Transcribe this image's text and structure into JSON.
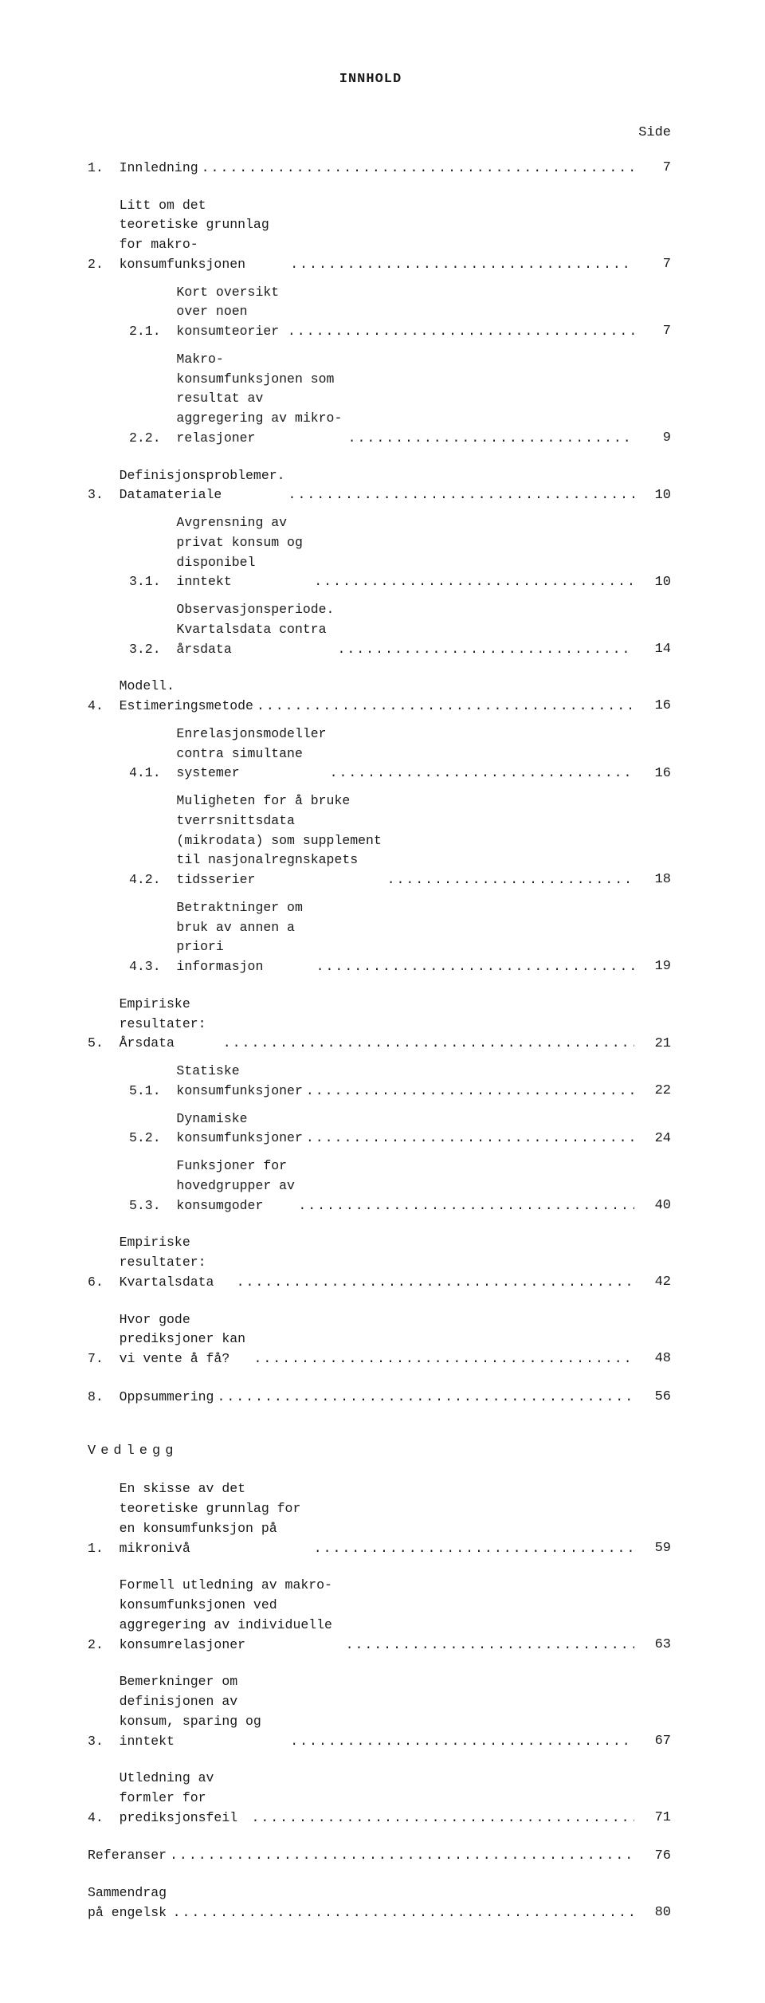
{
  "title": "INNHOLD",
  "side_label": "Side",
  "vedlegg_label": "Vedlegg",
  "dots": "..................................................................................................",
  "entries": [
    {
      "level": "top",
      "num": "1.",
      "text": "Innledning",
      "page": "7",
      "gap": "section-gap"
    },
    {
      "level": "top",
      "num": "2.",
      "text": "Litt om det teoretiske grunnlag for makro-konsumfunksjonen",
      "page": "7",
      "gap": "section-gap"
    },
    {
      "level": "sub",
      "num": "2.1.",
      "text": "Kort oversikt over noen konsumteorier",
      "page": "7"
    },
    {
      "level": "sub",
      "num": "2.2.",
      "text": "Makro-konsumfunksjonen som resultat av aggregering av mikro-relasjoner",
      "page": "9",
      "multiline": true
    },
    {
      "level": "top",
      "num": "3.",
      "text": "Definisjonsproblemer.  Datamateriale",
      "page": "10",
      "gap": "section-gap"
    },
    {
      "level": "sub",
      "num": "3.1.",
      "text": "Avgrensning av privat konsum og disponibel inntekt",
      "page": "10"
    },
    {
      "level": "sub",
      "num": "3.2.",
      "text": "Observasjonsperiode.  Kvartalsdata contra årsdata",
      "page": "14"
    },
    {
      "level": "top",
      "num": "4.",
      "text": "Modell.  Estimeringsmetode",
      "page": "16",
      "gap": "section-gap"
    },
    {
      "level": "sub",
      "num": "4.1.",
      "text": "Enrelasjonsmodeller contra simultane systemer",
      "page": "16"
    },
    {
      "level": "sub",
      "num": "4.2.",
      "text": "Muligheten for å bruke tverrsnittsdata (mikrodata) som supplement til nasjonalregnskapets tidsserier",
      "page": "18",
      "multiline": true
    },
    {
      "level": "sub",
      "num": "4.3.",
      "text": "Betraktninger om bruk av annen a priori informasjon",
      "page": "19"
    },
    {
      "level": "top",
      "num": "5.",
      "text": "Empiriske resultater:  Årsdata",
      "page": "21",
      "gap": "section-gap"
    },
    {
      "level": "sub",
      "num": "5.1.",
      "text": "Statiske konsumfunksjoner",
      "page": "22"
    },
    {
      "level": "sub",
      "num": "5.2.",
      "text": "Dynamiske konsumfunksjoner",
      "page": "24"
    },
    {
      "level": "sub",
      "num": "5.3.",
      "text": "Funksjoner for hovedgrupper av konsumgoder",
      "page": "40"
    },
    {
      "level": "top",
      "num": "6.",
      "text": "Empiriske resultater:  Kvartalsdata",
      "page": "42",
      "gap": "section-gap"
    },
    {
      "level": "top",
      "num": "7.",
      "text": "Hvor gode prediksjoner kan vi vente å få?",
      "page": "48",
      "gap": "section-gap"
    },
    {
      "level": "top",
      "num": "8.",
      "text": "Oppsummering",
      "page": "56",
      "gap": "section-gap"
    }
  ],
  "vedlegg_entries": [
    {
      "level": "top",
      "num": "1.",
      "text": "En skisse av det teoretiske grunnlag for en konsumfunksjon på mikronivå",
      "page": "59",
      "multiline": true
    },
    {
      "level": "top",
      "num": "2.",
      "text": "Formell utledning av makro-konsumfunksjonen ved aggregering av individuelle konsumrelasjoner",
      "page": "63",
      "gap": "section-gap",
      "multiline": true
    },
    {
      "level": "top",
      "num": "3.",
      "text": "Bemerkninger om definisjonen av konsum, sparing og inntekt",
      "page": "67",
      "gap": "section-gap"
    },
    {
      "level": "top",
      "num": "4.",
      "text": "Utledning av formler for prediksjonsfeil",
      "page": "71",
      "gap": "section-gap"
    },
    {
      "level": "unnum",
      "num": "",
      "text": "Referanser",
      "page": "76",
      "gap": "section-gap"
    },
    {
      "level": "unnum",
      "num": "",
      "text": "Sammendrag på engelsk",
      "page": "80",
      "gap": "section-gap"
    }
  ]
}
